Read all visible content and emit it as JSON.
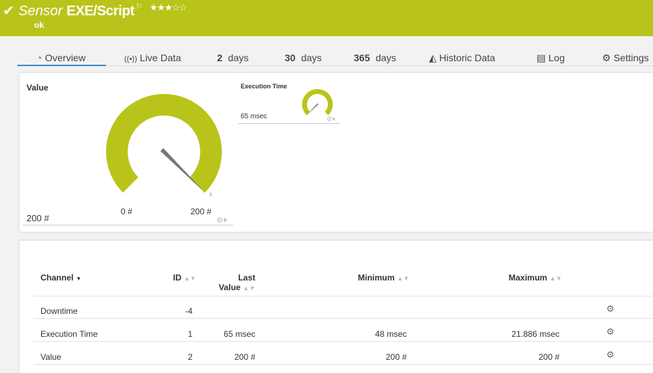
{
  "header": {
    "prefix": "Sensor",
    "name": "EXE/Script",
    "flag_icon": "flag-icon",
    "rating": "★★★☆☆",
    "rating_value": 3,
    "status": "ok",
    "color": "#b9c41a"
  },
  "tabs": [
    {
      "label": "Overview",
      "icon": "gauge-icon"
    },
    {
      "label": "Live Data",
      "icon": "broadcast-icon"
    },
    {
      "num": "2",
      "label": "days"
    },
    {
      "num": "30",
      "label": "days"
    },
    {
      "num": "365",
      "label": "days"
    },
    {
      "label": "Historic Data",
      "icon": "area-chart-icon"
    },
    {
      "label": "Log",
      "icon": "list-icon"
    },
    {
      "label": "Settings",
      "icon": "gear-icon"
    }
  ],
  "gauges": {
    "value": {
      "title": "Value",
      "reading": "200 #",
      "min_label": "0 #",
      "max_label": "200 #",
      "fraction": 1.0
    },
    "exec": {
      "title": "Execution Time",
      "reading": "65 msec",
      "fraction": 0.0
    }
  },
  "table": {
    "headers": {
      "channel": "Channel",
      "id": "ID",
      "last1": "Last",
      "last2": "Value",
      "min": "Minimum",
      "max": "Maximum"
    },
    "rows": [
      {
        "channel": "Downtime",
        "id": "-4",
        "last": "",
        "min": "",
        "max": ""
      },
      {
        "channel": "Execution Time",
        "id": "1",
        "last": "65 msec",
        "min": "48 msec",
        "max": "21.886 msec"
      },
      {
        "channel": "Value",
        "id": "2",
        "last": "200 #",
        "min": "200 #",
        "max": "200 #"
      }
    ]
  }
}
